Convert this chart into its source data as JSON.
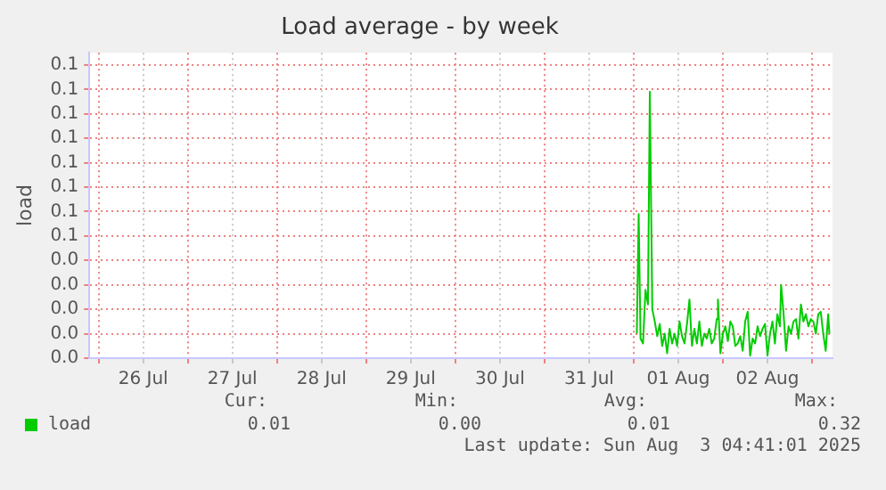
{
  "chart_data": {
    "type": "line",
    "title": "Load average - by week",
    "ylabel": "load",
    "xlim": [
      "2025-07-25T21:30",
      "2025-08-03T05:30"
    ],
    "xticks": [
      {
        "value": "2025-07-26T00:00",
        "label": null
      },
      {
        "value": "2025-07-26T12:00",
        "label": "26 Jul"
      },
      {
        "value": "2025-07-27T00:00",
        "label": null
      },
      {
        "value": "2025-07-27T12:00",
        "label": "27 Jul"
      },
      {
        "value": "2025-07-28T00:00",
        "label": null
      },
      {
        "value": "2025-07-28T12:00",
        "label": "28 Jul"
      },
      {
        "value": "2025-07-29T00:00",
        "label": null
      },
      {
        "value": "2025-07-29T12:00",
        "label": "29 Jul"
      },
      {
        "value": "2025-07-30T00:00",
        "label": null
      },
      {
        "value": "2025-07-30T12:00",
        "label": "30 Jul"
      },
      {
        "value": "2025-07-31T00:00",
        "label": null
      },
      {
        "value": "2025-07-31T12:00",
        "label": "31 Jul"
      },
      {
        "value": "2025-08-01T00:00",
        "label": null
      },
      {
        "value": "2025-08-01T12:00",
        "label": "01 Aug"
      },
      {
        "value": "2025-08-02T00:00",
        "label": null
      },
      {
        "value": "2025-08-02T12:00",
        "label": "02 Aug"
      },
      {
        "value": "2025-08-03T00:00",
        "label": null
      }
    ],
    "ylim": [
      0,
      0.125
    ],
    "yticks": [
      {
        "value": 0,
        "label": "0.0"
      },
      {
        "value": 0.01,
        "label": "0.0"
      },
      {
        "value": 0.02,
        "label": "0.0"
      },
      {
        "value": 0.03,
        "label": "0.0"
      },
      {
        "value": 0.04,
        "label": "0.0"
      },
      {
        "value": 0.05,
        "label": "0.1"
      },
      {
        "value": 0.06,
        "label": "0.1"
      },
      {
        "value": 0.07,
        "label": "0.1"
      },
      {
        "value": 0.08,
        "label": "0.1"
      },
      {
        "value": 0.09,
        "label": "0.1"
      },
      {
        "value": 0.1,
        "label": "0.1"
      },
      {
        "value": 0.11,
        "label": "0.1"
      },
      {
        "value": 0.12,
        "label": "0.1"
      }
    ],
    "grid": true,
    "legend": "bottom left",
    "marker": "none",
    "x": [
      "2025-08-01T00:50",
      "2025-08-01T01:20",
      "2025-08-01T01:50",
      "2025-08-01T02:30",
      "2025-08-01T03:10",
      "2025-08-01T03:50",
      "2025-08-01T04:20",
      "2025-08-01T05:00",
      "2025-08-01T05:40",
      "2025-08-01T06:20",
      "2025-08-01T07:00",
      "2025-08-01T07:40",
      "2025-08-01T08:20",
      "2025-08-01T09:00",
      "2025-08-01T09:40",
      "2025-08-01T10:20",
      "2025-08-01T11:00",
      "2025-08-01T11:40",
      "2025-08-01T12:20",
      "2025-08-01T13:00",
      "2025-08-01T13:40",
      "2025-08-01T14:20",
      "2025-08-01T15:00",
      "2025-08-01T15:40",
      "2025-08-01T16:20",
      "2025-08-01T17:00",
      "2025-08-01T17:40",
      "2025-08-01T18:20",
      "2025-08-01T19:00",
      "2025-08-01T19:40",
      "2025-08-01T20:20",
      "2025-08-01T21:00",
      "2025-08-01T21:40",
      "2025-08-01T22:20",
      "2025-08-01T22:40",
      "2025-08-01T23:20",
      "2025-08-02T00:00",
      "2025-08-02T00:40",
      "2025-08-02T01:20",
      "2025-08-02T02:00",
      "2025-08-02T02:40",
      "2025-08-02T03:20",
      "2025-08-02T04:00",
      "2025-08-02T04:40",
      "2025-08-02T05:20",
      "2025-08-02T06:00",
      "2025-08-02T06:40",
      "2025-08-02T07:20",
      "2025-08-02T08:00",
      "2025-08-02T08:40",
      "2025-08-02T09:20",
      "2025-08-02T10:00",
      "2025-08-02T10:40",
      "2025-08-02T11:20",
      "2025-08-02T12:00",
      "2025-08-02T12:40",
      "2025-08-02T13:20",
      "2025-08-02T14:00",
      "2025-08-02T14:40",
      "2025-08-02T15:20",
      "2025-08-02T15:40",
      "2025-08-02T16:20",
      "2025-08-02T17:00",
      "2025-08-02T17:40",
      "2025-08-02T18:20",
      "2025-08-02T19:00",
      "2025-08-02T19:40",
      "2025-08-02T20:20",
      "2025-08-02T21:00",
      "2025-08-02T21:40",
      "2025-08-02T22:20",
      "2025-08-02T23:00",
      "2025-08-02T23:40",
      "2025-08-03T00:20",
      "2025-08-03T01:00",
      "2025-08-03T01:40",
      "2025-08-03T02:20",
      "2025-08-03T03:00",
      "2025-08-03T03:40",
      "2025-08-03T04:20",
      "2025-08-03T04:40"
    ],
    "series": [
      {
        "name": "load",
        "color": "#00cc00",
        "values": [
          0.01,
          0.059,
          0.008,
          0.006,
          0.028,
          0.022,
          0.109,
          0.02,
          0.015,
          0.009,
          0.014,
          0.005,
          0.01,
          0.002,
          0.012,
          0.006,
          0.01,
          0.005,
          0.015,
          0.009,
          0.006,
          0.014,
          0.024,
          0.005,
          0.012,
          0.006,
          0.015,
          0.005,
          0.01,
          0.008,
          0.012,
          0.006,
          0.008,
          0.016,
          0.024,
          0.002,
          0.01,
          0.013,
          0.007,
          0.015,
          0.013,
          0.005,
          0.006,
          0.009,
          0.003,
          0.015,
          0.019,
          0.001,
          0.008,
          0.006,
          0.013,
          0.009,
          0.012,
          0.014,
          0.001,
          0.01,
          0.015,
          0.006,
          0.018,
          0.013,
          0.03,
          0.018,
          0.003,
          0.013,
          0.01,
          0.015,
          0.016,
          0.008,
          0.022,
          0.015,
          0.018,
          0.013,
          0.016,
          0.015,
          0.01,
          0.018,
          0.019,
          0.01,
          0.003,
          0.018,
          0.01
        ]
      }
    ],
    "annotations": [
      "Cur:",
      "0.01",
      "Min:",
      "0.00",
      "Avg:",
      "0.01",
      "Max:",
      "0.32",
      "Last update: Sun Aug  3 04:41:01 2025"
    ]
  }
}
